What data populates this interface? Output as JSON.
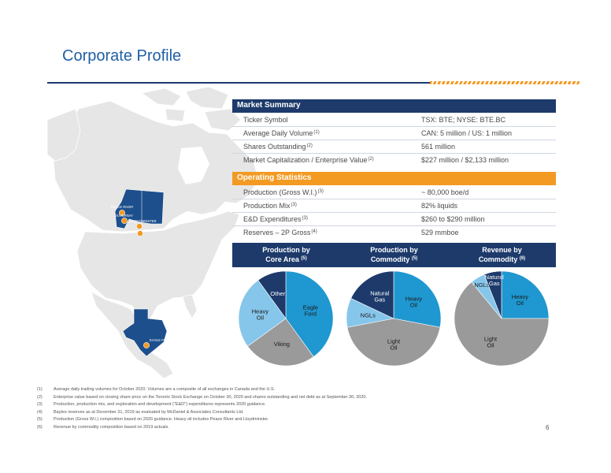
{
  "header": {
    "title": "Corporate Profile"
  },
  "market_summary": {
    "title": "Market Summary",
    "rows": [
      {
        "label": "Ticker Symbol",
        "sup": "",
        "value": "TSX: BTE; NYSE: BTE.BC"
      },
      {
        "label": "Average Daily Volume",
        "sup": "(1)",
        "value": "CAN: 5 million / US: 1 million"
      },
      {
        "label": "Shares Outstanding",
        "sup": "(2)",
        "value": "561 million"
      },
      {
        "label": "Market Capitalization / Enterprise Value",
        "sup": "(2)",
        "value": "$227 million / $2,133 million"
      }
    ]
  },
  "operating_statistics": {
    "title": "Operating Statistics",
    "rows": [
      {
        "label": "Production (Gross W.I.)",
        "sup": "(3)",
        "value": "~ 80,000 boe/d"
      },
      {
        "label": "Production Mix",
        "sup": "(3)",
        "value": "82% liquids"
      },
      {
        "label": "E&D Expenditures",
        "sup": "(3)",
        "value": "$260 to $290 million"
      },
      {
        "label": "Reserves – 2P Gross",
        "sup": "(4)",
        "value": "529 mmboe"
      }
    ]
  },
  "map": {
    "labels": {
      "peace_river": "PEACE RIVER",
      "duvernay": "DUVERNAY",
      "lloydminster": "LLOYDMINSTER",
      "viking": "VIKING",
      "eagle_ford": "EAGLE FORD"
    },
    "colors": {
      "region": "#1d4f8c",
      "marker": "#f39a22",
      "land": "#e6e6e6"
    }
  },
  "pies": [
    {
      "title_line1": "Production by",
      "title_line2": "Core Area",
      "sup": "(5)"
    },
    {
      "title_line1": "Production by",
      "title_line2": "Commodity",
      "sup": "(5)"
    },
    {
      "title_line1": "Revenue by",
      "title_line2": "Commodity",
      "sup": "(6)"
    }
  ],
  "chart_data": [
    {
      "type": "pie",
      "slices": [
        {
          "label": "Eagle Ford",
          "value": 40,
          "color": "#1f97d0"
        },
        {
          "label": "Viking",
          "value": 25,
          "color": "#9a9a9a"
        },
        {
          "label": "Heavy Oil",
          "value": 25,
          "color": "#86c6ea"
        },
        {
          "label": "Other",
          "value": 10,
          "color": "#1d3a6b"
        }
      ]
    },
    {
      "type": "pie",
      "slices": [
        {
          "label": "Heavy Oil",
          "value": 28,
          "color": "#1f97d0"
        },
        {
          "label": "Light Oil",
          "value": 44,
          "color": "#9a9a9a"
        },
        {
          "label": "NGLs",
          "value": 10,
          "color": "#86c6ea"
        },
        {
          "label": "Natural Gas",
          "value": 18,
          "color": "#1d3a6b"
        }
      ]
    },
    {
      "type": "pie",
      "slices": [
        {
          "label": "Heavy Oil",
          "value": 25,
          "color": "#1f97d0"
        },
        {
          "label": "Light Oil",
          "value": 64,
          "color": "#9a9a9a"
        },
        {
          "label": "NGLs",
          "value": 5,
          "color": "#86c6ea"
        },
        {
          "label": "Natural Gas",
          "value": 6,
          "color": "#1d3a6b"
        }
      ]
    }
  ],
  "footnotes": [
    {
      "num": "(1)",
      "text": "Average daily trading volumes for October 2020. Volumes are a composite of all exchanges in Canada and the U.S."
    },
    {
      "num": "(2)",
      "text": "Enterprise value based on closing share price on the Toronto Stock Exchange on October 30, 2020 and shares outstanding and net debt as at September 30, 2020."
    },
    {
      "num": "(3)",
      "text": "Production, production mix, and exploration and development (\"E&D\") expenditures represents 2020 guidance."
    },
    {
      "num": "(4)",
      "text": "Baytex reserves as at December 31, 2019 as evaluated by McDaniel & Associates Consultants Ltd."
    },
    {
      "num": "(5)",
      "text": "Production (Gross W.I.) composition based on 2020 guidance. Heavy oil includes Peace River and Lloydminster."
    },
    {
      "num": "(6)",
      "text": "Revenue by commodity composition based on 2019 actuals."
    }
  ],
  "page_number": "6"
}
